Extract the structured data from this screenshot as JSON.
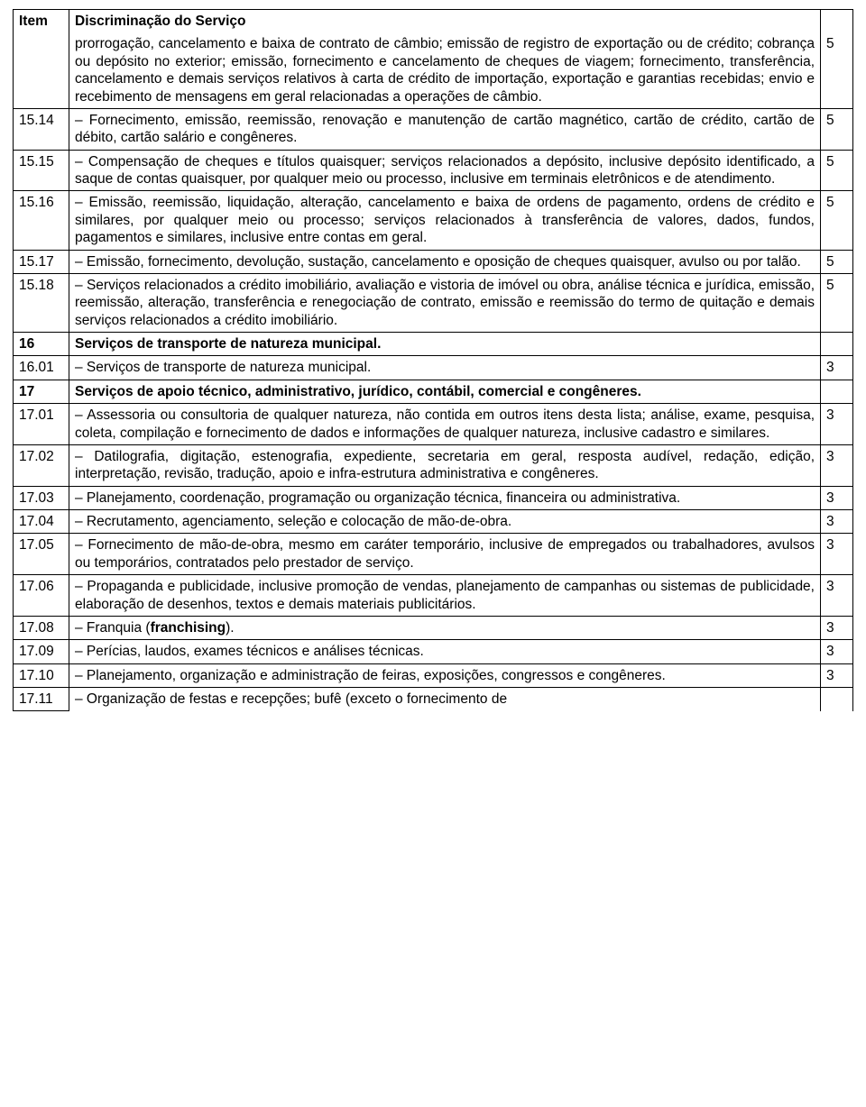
{
  "header": {
    "item": "Item",
    "desc": "Discriminação do Serviço"
  },
  "rows": [
    {
      "item": "",
      "desc": "prorrogação, cancelamento e baixa de contrato de câmbio; emissão de registro de exportação ou de crédito; cobrança ou depósito no exterior; emissão, fornecimento e cancelamento de cheques de viagem; fornecimento, transferência, cancelamento e demais serviços relativos à carta de crédito de importação, exportação e garantias recebidas; envio e recebimento de mensagens em geral relacionadas a operações de câmbio.",
      "rate": "5",
      "cont": true
    },
    {
      "item": "15.14",
      "desc": "– Fornecimento, emissão, reemissão, renovação e manutenção de cartão magnético, cartão de crédito, cartão de débito, cartão salário e congêneres.",
      "rate": "5"
    },
    {
      "item": "15.15",
      "desc": "– Compensação de cheques e títulos quaisquer; serviços relacionados a depósito, inclusive depósito identificado, a saque de contas quaisquer, por qualquer meio ou processo, inclusive em terminais eletrônicos e de atendimento.",
      "rate": "5"
    },
    {
      "item": "15.16",
      "desc": "– Emissão, reemissão, liquidação, alteração, cancelamento e baixa de ordens de pagamento, ordens de crédito e similares, por qualquer meio ou processo; serviços relacionados à transferência de valores, dados, fundos, pagamentos e similares, inclusive entre contas em geral.",
      "rate": "5"
    },
    {
      "item": "15.17",
      "desc": "– Emissão, fornecimento, devolução, sustação, cancelamento e oposição de cheques quaisquer, avulso ou por talão.",
      "rate": "5"
    },
    {
      "item": "15.18",
      "desc": "– Serviços relacionados a crédito imobiliário, avaliação e vistoria de imóvel ou obra, análise técnica e jurídica, emissão, reemissão, alteração, transferência e renegociação de contrato, emissão e reemissão do termo de quitação e demais serviços relacionados a crédito imobiliário.",
      "rate": "5"
    },
    {
      "item": "16",
      "desc": "Serviços de transporte de natureza municipal.",
      "rate": "",
      "bold": true
    },
    {
      "item": "16.01",
      "desc": "– Serviços de transporte de natureza municipal.",
      "rate": "3"
    },
    {
      "item": "17",
      "desc": "Serviços de apoio técnico, administrativo, jurídico, contábil, comercial e congêneres.",
      "rate": "",
      "bold": true
    },
    {
      "item": "17.01",
      "desc": "– Assessoria ou consultoria de qualquer natureza, não contida em outros itens desta lista; análise, exame, pesquisa, coleta, compilação e fornecimento de dados e informações de qualquer natureza, inclusive cadastro e similares.",
      "rate": "3"
    },
    {
      "item": "17.02",
      "desc": "– Datilografia, digitação, estenografia, expediente, secretaria em geral, resposta audível, redação, edição, interpretação, revisão, tradução, apoio e infra-estrutura administrativa e congêneres.",
      "rate": "3"
    },
    {
      "item": "17.03",
      "desc": "– Planejamento, coordenação, programação ou organização técnica, financeira ou administrativa.",
      "rate": "3"
    },
    {
      "item": "17.04",
      "desc": "– Recrutamento, agenciamento, seleção e colocação de mão-de-obra.",
      "rate": "3"
    },
    {
      "item": "17.05",
      "desc": "– Fornecimento de mão-de-obra, mesmo em caráter temporário, inclusive de empregados ou trabalhadores, avulsos ou temporários, contratados pelo prestador de serviço.",
      "rate": "3"
    },
    {
      "item": "17.06",
      "desc": "– Propaganda e publicidade, inclusive promoção de vendas, planejamento de campanhas ou sistemas de publicidade, elaboração de desenhos, textos e demais materiais publicitários.",
      "rate": "3"
    },
    {
      "item": "17.08",
      "desc": "– Franquia (franchising).",
      "rate": "3",
      "franchising": true
    },
    {
      "item": "17.09",
      "desc": "– Perícias, laudos, exames técnicos e análises técnicas.",
      "rate": "3"
    },
    {
      "item": "17.10",
      "desc": "– Planejamento, organização e administração de feiras, exposições, congressos e congêneres.",
      "rate": "3"
    },
    {
      "item": "17.11",
      "desc": "– Organização de festas e recepções; bufê (exceto o fornecimento de",
      "rate": "",
      "open": true
    }
  ],
  "franchising_parts": {
    "a": "– Franquia (",
    "b": "franchising",
    "c": ")."
  }
}
